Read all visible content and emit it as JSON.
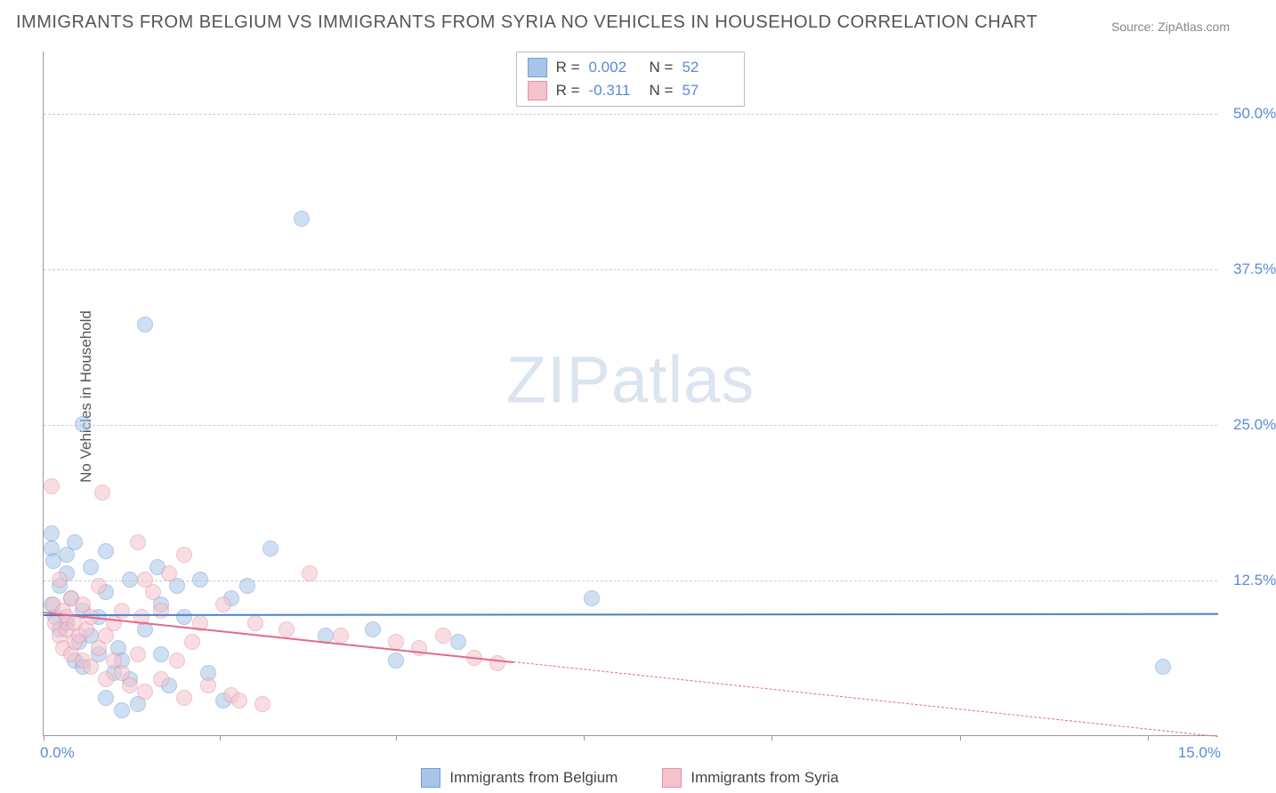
{
  "title": "IMMIGRANTS FROM BELGIUM VS IMMIGRANTS FROM SYRIA NO VEHICLES IN HOUSEHOLD CORRELATION CHART",
  "source_prefix": "Source: ",
  "source": "ZipAtlas.com",
  "watermark_bold": "ZIP",
  "watermark_thin": "atlas",
  "ylabel": "No Vehicles in Household",
  "chart": {
    "type": "scatter",
    "background_color": "#ffffff",
    "grid_color": "#cccccc",
    "axis_color": "#999999",
    "xlim": [
      0,
      15
    ],
    "ylim": [
      0,
      55
    ],
    "xtick_label_left": "0.0%",
    "xtick_label_right": "15.0%",
    "xtick_positions_pct": [
      0,
      15,
      30,
      46,
      62,
      78,
      94
    ],
    "yticks": [
      {
        "value": 12.5,
        "label": "12.5%"
      },
      {
        "value": 25.0,
        "label": "25.0%"
      },
      {
        "value": 37.5,
        "label": "37.5%"
      },
      {
        "value": 50.0,
        "label": "50.0%"
      }
    ],
    "tick_label_color": "#5b8bd4",
    "tick_label_fontsize": 17,
    "marker_radius": 9,
    "marker_opacity": 0.55,
    "series": [
      {
        "name": "Immigrants from Belgium",
        "color_fill": "#a8c5e8",
        "color_stroke": "#6f9fd8",
        "R": "0.002",
        "N": "52",
        "trend": {
          "y_start": 9.8,
          "y_end": 9.9,
          "color": "#4a7fc9",
          "width": 2
        },
        "points": [
          [
            0.1,
            16.2
          ],
          [
            0.1,
            15.0
          ],
          [
            0.12,
            14.0
          ],
          [
            0.1,
            10.5
          ],
          [
            0.15,
            9.5
          ],
          [
            0.2,
            8.5
          ],
          [
            0.2,
            12.0
          ],
          [
            0.3,
            14.5
          ],
          [
            0.3,
            13.0
          ],
          [
            0.35,
            11.0
          ],
          [
            0.3,
            9.0
          ],
          [
            0.4,
            15.5
          ],
          [
            0.4,
            6.0
          ],
          [
            0.45,
            7.5
          ],
          [
            0.5,
            25.0
          ],
          [
            0.5,
            10.0
          ],
          [
            0.5,
            5.5
          ],
          [
            0.6,
            13.5
          ],
          [
            0.6,
            8.0
          ],
          [
            0.7,
            9.5
          ],
          [
            0.7,
            6.5
          ],
          [
            0.8,
            14.8
          ],
          [
            0.8,
            11.5
          ],
          [
            0.8,
            3.0
          ],
          [
            0.9,
            5.0
          ],
          [
            0.95,
            7.0
          ],
          [
            1.0,
            2.0
          ],
          [
            1.0,
            6.0
          ],
          [
            1.1,
            12.5
          ],
          [
            1.1,
            4.5
          ],
          [
            1.2,
            2.5
          ],
          [
            1.3,
            33.0
          ],
          [
            1.3,
            8.5
          ],
          [
            1.45,
            13.5
          ],
          [
            1.5,
            6.5
          ],
          [
            1.5,
            10.5
          ],
          [
            1.6,
            4.0
          ],
          [
            1.7,
            12.0
          ],
          [
            1.8,
            9.5
          ],
          [
            2.0,
            12.5
          ],
          [
            2.1,
            5.0
          ],
          [
            2.3,
            2.8
          ],
          [
            2.4,
            11.0
          ],
          [
            2.6,
            12.0
          ],
          [
            2.9,
            15.0
          ],
          [
            3.3,
            41.5
          ],
          [
            3.6,
            8.0
          ],
          [
            4.2,
            8.5
          ],
          [
            4.5,
            6.0
          ],
          [
            5.3,
            7.5
          ],
          [
            7.0,
            11.0
          ],
          [
            14.3,
            5.5
          ]
        ]
      },
      {
        "name": "Immigrants from Syria",
        "color_fill": "#f4c2cd",
        "color_stroke": "#e98fa5",
        "R": "-0.311",
        "N": "57",
        "trend": {
          "y_start": 10.0,
          "y_end": 0.0,
          "x_solid_end": 6.0,
          "color": "#e06b8b",
          "width": 2
        },
        "points": [
          [
            0.1,
            20.0
          ],
          [
            0.12,
            10.5
          ],
          [
            0.15,
            9.0
          ],
          [
            0.2,
            12.5
          ],
          [
            0.2,
            8.0
          ],
          [
            0.25,
            10.0
          ],
          [
            0.25,
            7.0
          ],
          [
            0.3,
            9.5
          ],
          [
            0.3,
            8.5
          ],
          [
            0.35,
            11.0
          ],
          [
            0.35,
            6.5
          ],
          [
            0.4,
            9.0
          ],
          [
            0.4,
            7.5
          ],
          [
            0.45,
            8.0
          ],
          [
            0.5,
            10.5
          ],
          [
            0.5,
            6.0
          ],
          [
            0.55,
            8.5
          ],
          [
            0.6,
            9.5
          ],
          [
            0.6,
            5.5
          ],
          [
            0.7,
            12.0
          ],
          [
            0.7,
            7.0
          ],
          [
            0.75,
            19.5
          ],
          [
            0.8,
            8.0
          ],
          [
            0.8,
            4.5
          ],
          [
            0.9,
            9.0
          ],
          [
            0.9,
            6.0
          ],
          [
            1.0,
            10.0
          ],
          [
            1.0,
            5.0
          ],
          [
            1.1,
            4.0
          ],
          [
            1.2,
            15.5
          ],
          [
            1.2,
            6.5
          ],
          [
            1.25,
            9.5
          ],
          [
            1.3,
            12.5
          ],
          [
            1.3,
            3.5
          ],
          [
            1.4,
            11.5
          ],
          [
            1.5,
            10.0
          ],
          [
            1.5,
            4.5
          ],
          [
            1.6,
            13.0
          ],
          [
            1.7,
            6.0
          ],
          [
            1.8,
            3.0
          ],
          [
            1.8,
            14.5
          ],
          [
            1.9,
            7.5
          ],
          [
            2.0,
            9.0
          ],
          [
            2.1,
            4.0
          ],
          [
            2.3,
            10.5
          ],
          [
            2.4,
            3.2
          ],
          [
            2.5,
            2.8
          ],
          [
            2.7,
            9.0
          ],
          [
            2.8,
            2.5
          ],
          [
            3.1,
            8.5
          ],
          [
            3.4,
            13.0
          ],
          [
            3.8,
            8.0
          ],
          [
            4.5,
            7.5
          ],
          [
            4.8,
            7.0
          ],
          [
            5.1,
            8.0
          ],
          [
            5.5,
            6.2
          ],
          [
            5.8,
            5.8
          ]
        ]
      }
    ]
  },
  "legend_top": {
    "R_label": "R =",
    "N_label": "N ="
  }
}
